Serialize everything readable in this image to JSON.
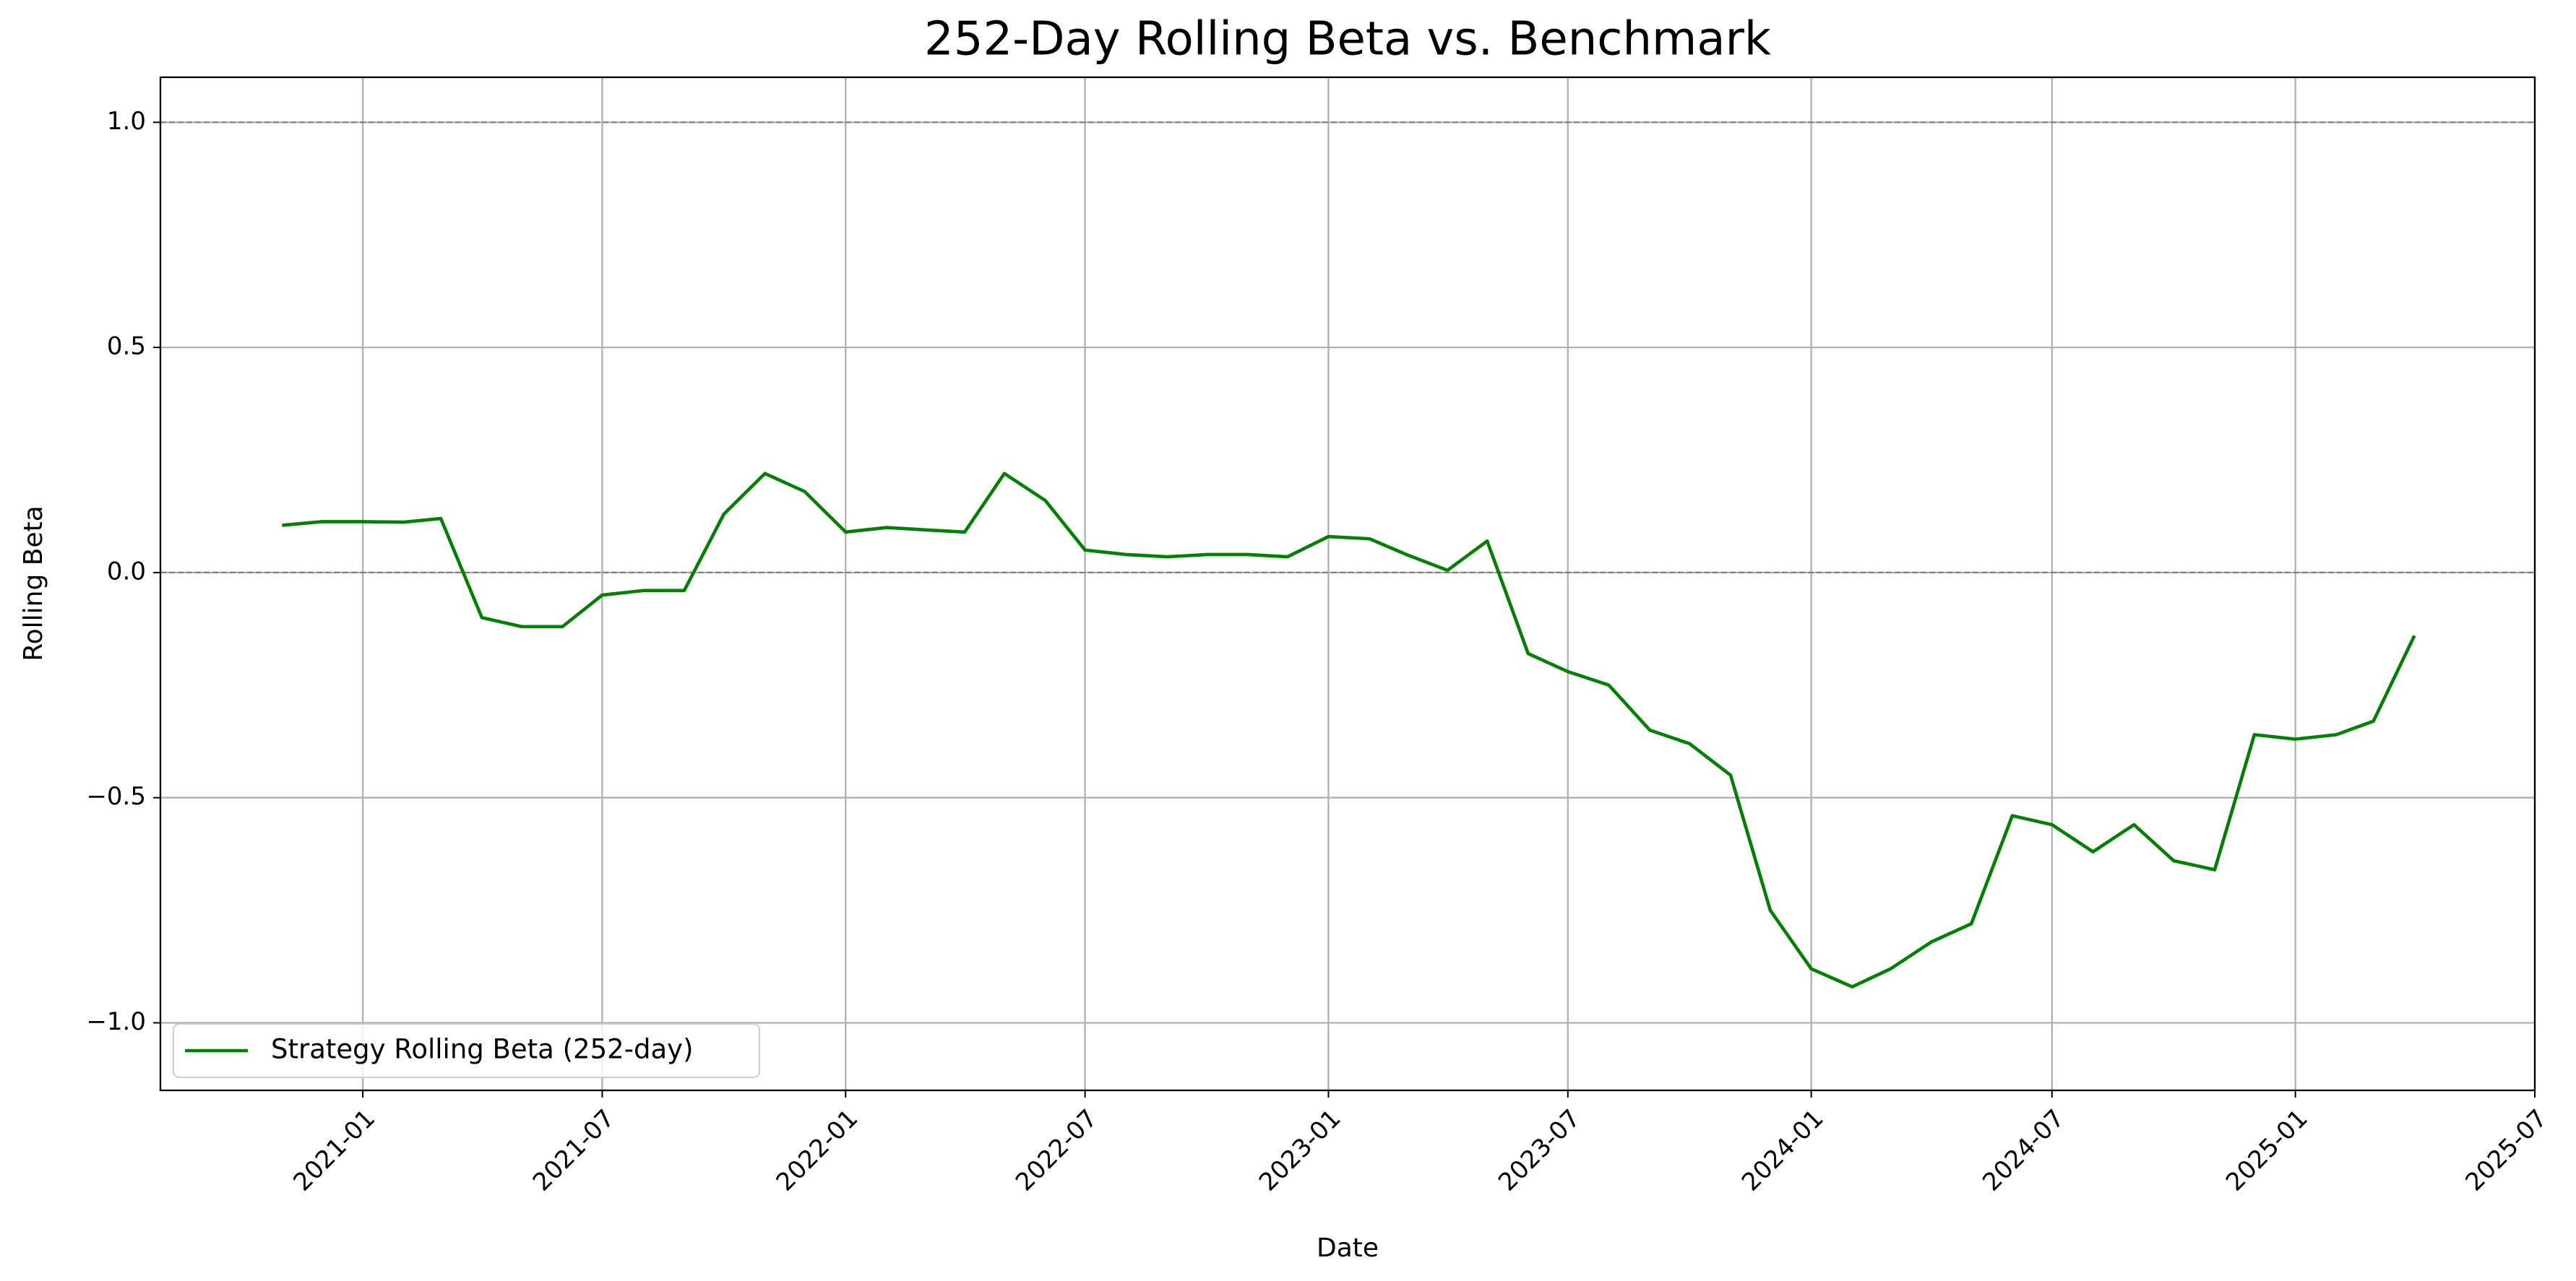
{
  "chart_data": {
    "type": "line",
    "title": "252-Day Rolling Beta vs. Benchmark",
    "x_label": "Date",
    "y_label": "Rolling Beta",
    "x": [
      "2020-11",
      "2020-12",
      "2021-01",
      "2021-02",
      "2021-03",
      "2021-04",
      "2021-05",
      "2021-06",
      "2021-07",
      "2021-08",
      "2021-09",
      "2021-10",
      "2021-11",
      "2021-12",
      "2022-01",
      "2022-02",
      "2022-03",
      "2022-04",
      "2022-05",
      "2022-06",
      "2022-07",
      "2022-08",
      "2022-09",
      "2022-10",
      "2022-11",
      "2022-12",
      "2023-01",
      "2023-02",
      "2023-03",
      "2023-04",
      "2023-05",
      "2023-06",
      "2023-07",
      "2023-08",
      "2023-09",
      "2023-10",
      "2023-11",
      "2023-12",
      "2024-01",
      "2024-02",
      "2024-03",
      "2024-04",
      "2024-05",
      "2024-06",
      "2024-07",
      "2024-08",
      "2024-09",
      "2024-10",
      "2024-11",
      "2024-12",
      "2025-01",
      "2025-02",
      "2025-03",
      "2025-04"
    ],
    "series": [
      {
        "name": "Strategy Rolling Beta (252-day)",
        "color": "#008000",
        "values": [
          0.105,
          0.113,
          0.113,
          0.112,
          0.12,
          -0.1,
          -0.12,
          -0.12,
          -0.05,
          -0.04,
          -0.04,
          0.13,
          0.22,
          0.18,
          0.09,
          0.1,
          0.095,
          0.09,
          0.22,
          0.16,
          0.05,
          0.04,
          0.035,
          0.04,
          0.04,
          0.035,
          0.08,
          0.075,
          0.04,
          0.005,
          0.07,
          -0.18,
          -0.22,
          -0.25,
          -0.35,
          -0.38,
          -0.45,
          -0.75,
          -0.88,
          -0.92,
          -0.88,
          -0.82,
          -0.78,
          -0.54,
          -0.56,
          -0.62,
          -0.56,
          -0.64,
          -0.66,
          -0.36,
          -0.37,
          -0.36,
          -0.33,
          -0.14
        ]
      }
    ],
    "xlim": [
      "2020-08",
      "2025-07"
    ],
    "xticks": [
      "2021-01",
      "2021-07",
      "2022-01",
      "2022-07",
      "2023-01",
      "2023-07",
      "2024-01",
      "2024-07",
      "2025-01",
      "2025-07"
    ],
    "ylim": [
      -1.15,
      1.1
    ],
    "yticks": [
      {
        "value": -1.0,
        "label": "−1.0"
      },
      {
        "value": -0.5,
        "label": "−0.5"
      },
      {
        "value": 0.0,
        "label": "0.0"
      },
      0.5,
      {
        "value": 1.0,
        "label": "1.0"
      }
    ],
    "hlines": [
      0,
      1
    ],
    "grid": true,
    "legend": "lower left"
  }
}
